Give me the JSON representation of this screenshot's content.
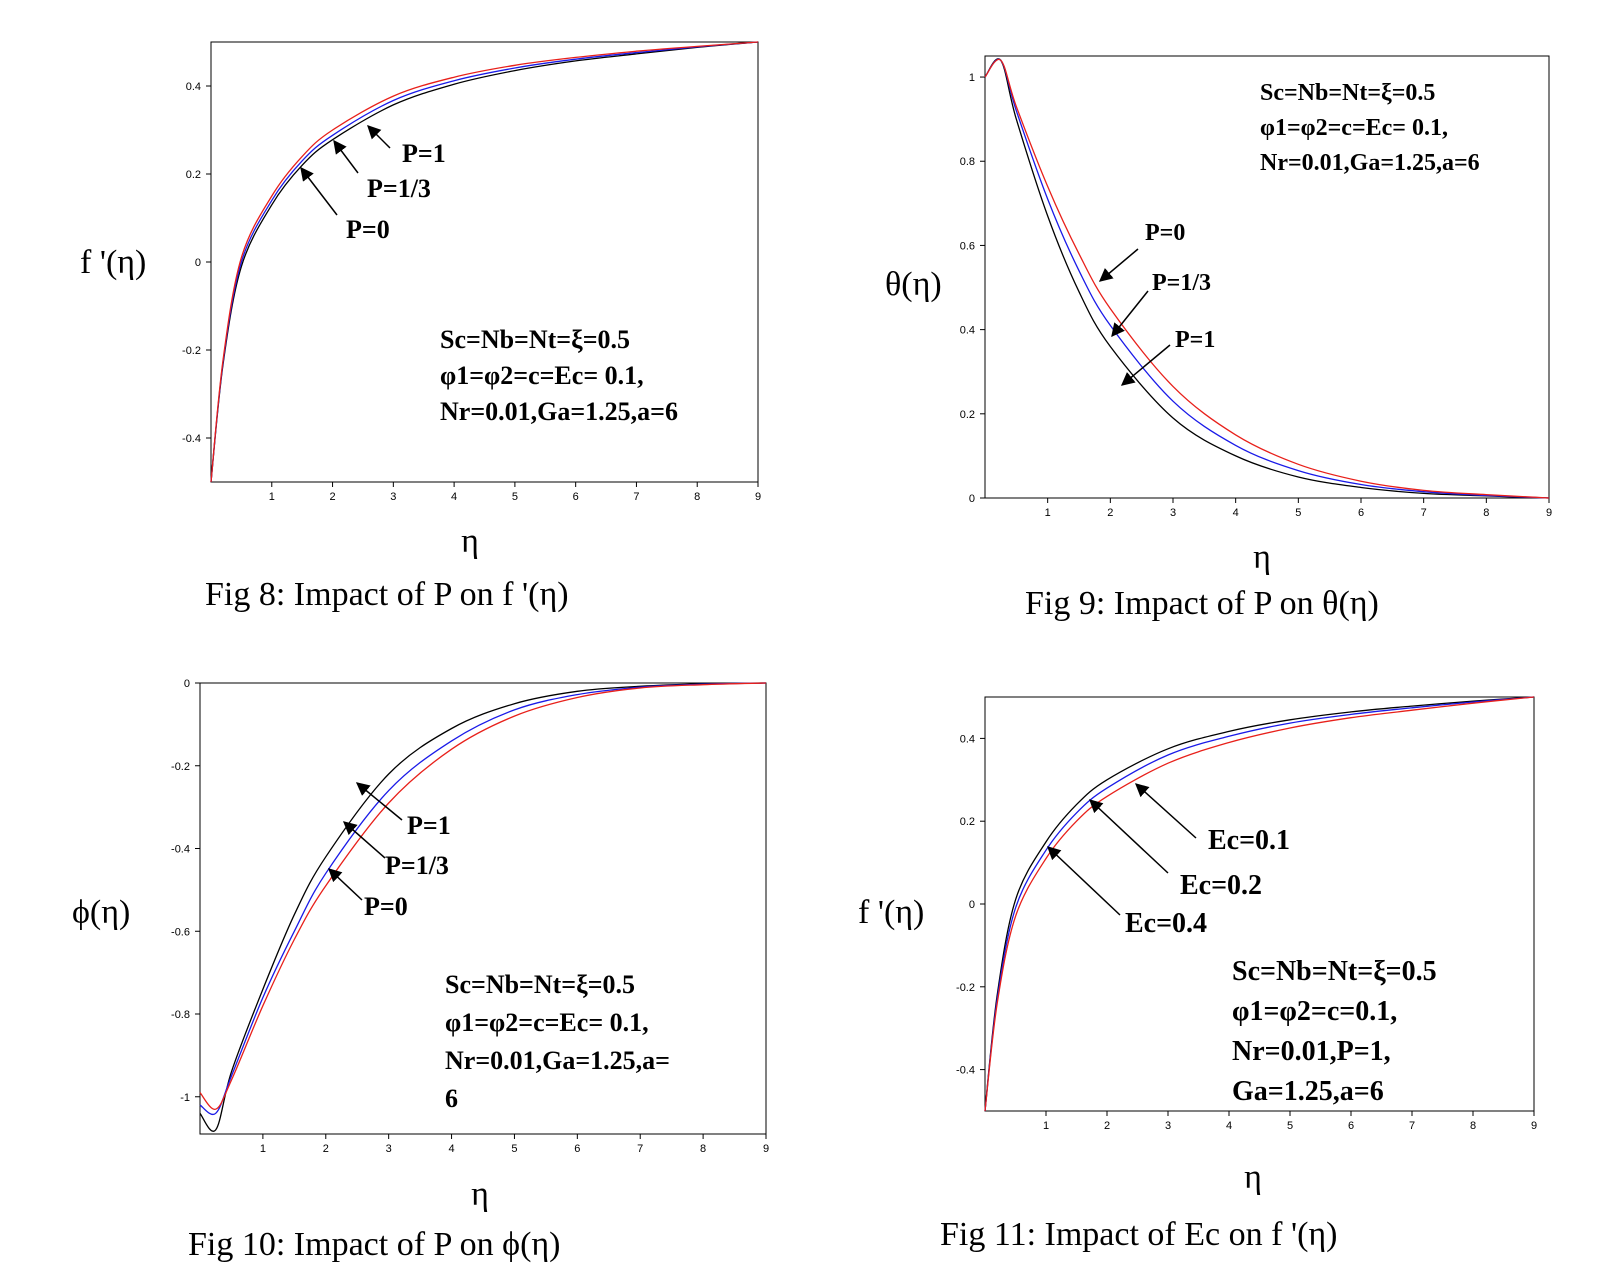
{
  "colors": {
    "red": "#e8201a",
    "blue": "#1a1ae8",
    "black": "#000000"
  },
  "chart_data": [
    {
      "type": "line",
      "caption": "Fig 8: Impact of P on f '(η)",
      "xlabel": "η",
      "ylabel": "f '(η)",
      "xlim": [
        0,
        9
      ],
      "ylim": [
        -0.5,
        0.5
      ],
      "xticks": [
        "1",
        "2",
        "3",
        "4",
        "5",
        "6",
        "7",
        "8",
        "9"
      ],
      "yticks": [
        "0.4",
        "0.2",
        "0",
        "-0.2",
        "-0.4"
      ],
      "x": [
        0,
        0.2,
        0.5,
        1,
        1.5,
        2,
        3,
        4,
        5,
        6,
        7,
        8,
        9
      ],
      "series": [
        {
          "name": "P=0",
          "color": "red",
          "values": [
            -0.5,
            -0.22,
            0.01,
            0.15,
            0.24,
            0.3,
            0.377,
            0.42,
            0.447,
            0.465,
            0.479,
            0.49,
            0.5
          ]
        },
        {
          "name": "P=1/3",
          "color": "blue",
          "values": [
            -0.5,
            -0.225,
            0.0,
            0.14,
            0.23,
            0.288,
            0.367,
            0.412,
            0.441,
            0.461,
            0.476,
            0.489,
            0.5
          ]
        },
        {
          "name": "P=1",
          "color": "black",
          "values": [
            -0.5,
            -0.23,
            -0.01,
            0.13,
            0.22,
            0.278,
            0.357,
            0.404,
            0.435,
            0.457,
            0.473,
            0.488,
            0.5
          ]
        }
      ],
      "labels": [
        "P=1",
        "P=1/3",
        "P=0"
      ],
      "info": [
        "Sc=Nb=Nt=ξ=0.5",
        "φ1=φ2=c=Ec= 0.1,",
        "Nr=0.01,Ga=1.25,a=6"
      ]
    },
    {
      "type": "line",
      "caption": "Fig 9: Impact of P on θ(η)",
      "xlabel": "η",
      "ylabel": "θ(η)",
      "xlim": [
        0,
        9
      ],
      "ylim": [
        0,
        1.05
      ],
      "xticks": [
        "1",
        "2",
        "3",
        "4",
        "5",
        "6",
        "7",
        "8",
        "9"
      ],
      "yticks": [
        "1",
        "0.8",
        "0.6",
        "0.4",
        "0.2",
        "0"
      ],
      "x": [
        0,
        0.25,
        0.5,
        1,
        1.5,
        2,
        3,
        4,
        5,
        6,
        7,
        8,
        9
      ],
      "series": [
        {
          "name": "P=0",
          "color": "red",
          "values": [
            1.0,
            1.04,
            0.93,
            0.74,
            0.58,
            0.45,
            0.265,
            0.15,
            0.08,
            0.04,
            0.018,
            0.008,
            0.0
          ]
        },
        {
          "name": "P=1/3",
          "color": "blue",
          "values": [
            1.0,
            1.04,
            0.92,
            0.71,
            0.54,
            0.41,
            0.23,
            0.125,
            0.065,
            0.032,
            0.015,
            0.006,
            0.0
          ]
        },
        {
          "name": "P=1",
          "color": "black",
          "values": [
            1.0,
            1.04,
            0.9,
            0.67,
            0.49,
            0.36,
            0.19,
            0.1,
            0.05,
            0.025,
            0.011,
            0.005,
            0.0
          ]
        }
      ],
      "labels": [
        "P=0",
        "P=1/3",
        "P=1"
      ],
      "info": [
        "Sc=Nb=Nt=ξ=0.5",
        "φ1=φ2=c=Ec= 0.1,",
        "Nr=0.01,Ga=1.25,a=6"
      ]
    },
    {
      "type": "line",
      "caption": "Fig 10: Impact of P on ϕ(η)",
      "xlabel": "η",
      "ylabel": "ϕ(η)",
      "xlim": [
        0,
        9
      ],
      "ylim": [
        -1.09,
        0
      ],
      "xticks": [
        "1",
        "2",
        "3",
        "4",
        "5",
        "6",
        "7",
        "8",
        "9"
      ],
      "yticks": [
        "0",
        "-0.2",
        "-0.4",
        "-0.6",
        "-0.8",
        "-1"
      ],
      "x": [
        0,
        0.25,
        0.5,
        1,
        1.5,
        2,
        3,
        4,
        5,
        6,
        7,
        8,
        9
      ],
      "series": [
        {
          "name": "P=0",
          "color": "red",
          "values": [
            -0.99,
            -1.03,
            -0.96,
            -0.78,
            -0.62,
            -0.49,
            -0.29,
            -0.16,
            -0.08,
            -0.035,
            -0.012,
            -0.004,
            0.0
          ]
        },
        {
          "name": "P=1/3",
          "color": "blue",
          "values": [
            -1.02,
            -1.04,
            -0.95,
            -0.76,
            -0.6,
            -0.46,
            -0.26,
            -0.14,
            -0.065,
            -0.028,
            -0.01,
            -0.003,
            0.0
          ]
        },
        {
          "name": "P=1",
          "color": "black",
          "values": [
            -1.04,
            -1.08,
            -0.94,
            -0.74,
            -0.56,
            -0.42,
            -0.22,
            -0.11,
            -0.05,
            -0.02,
            -0.008,
            -0.002,
            0.0
          ]
        }
      ],
      "labels": [
        "P=1",
        "P=1/3",
        "P=0"
      ],
      "info": [
        "Sc=Nb=Nt=ξ=0.5",
        "φ1=φ2=c=Ec= 0.1,",
        "Nr=0.01,Ga=1.25,a=",
        "6"
      ]
    },
    {
      "type": "line",
      "caption": "Fig 11: Impact of Ec on f '(η)",
      "xlabel": "η",
      "ylabel": "f '(η)",
      "xlim": [
        0,
        9
      ],
      "ylim": [
        -0.5,
        0.5
      ],
      "xticks": [
        "1",
        "2",
        "3",
        "4",
        "5",
        "6",
        "7",
        "8",
        "9"
      ],
      "yticks": [
        "0.4",
        "0.2",
        "0",
        "-0.2",
        "-0.4"
      ],
      "x": [
        0,
        0.2,
        0.5,
        1,
        1.5,
        2,
        3,
        4,
        5,
        6,
        7,
        8,
        9
      ],
      "series": [
        {
          "name": "Ec=0.4",
          "color": "red",
          "values": [
            -0.5,
            -0.24,
            -0.03,
            0.11,
            0.2,
            0.26,
            0.34,
            0.39,
            0.425,
            0.45,
            0.468,
            0.485,
            0.5
          ]
        },
        {
          "name": "Ec=0.2",
          "color": "blue",
          "values": [
            -0.5,
            -0.23,
            -0.01,
            0.13,
            0.22,
            0.28,
            0.36,
            0.405,
            0.437,
            0.458,
            0.474,
            0.488,
            0.5
          ]
        },
        {
          "name": "Ec=0.1",
          "color": "black",
          "values": [
            -0.5,
            -0.22,
            0.01,
            0.15,
            0.24,
            0.3,
            0.375,
            0.417,
            0.445,
            0.464,
            0.478,
            0.49,
            0.5
          ]
        }
      ],
      "labels": [
        "Ec=0.1",
        "Ec=0.2",
        "Ec=0.4"
      ],
      "info": [
        "Sc=Nb=Nt=ξ=0.5",
        "φ1=φ2=c=0.1,",
        "Nr=0.01,P=1,",
        "Ga=1.25,a=6"
      ]
    }
  ]
}
